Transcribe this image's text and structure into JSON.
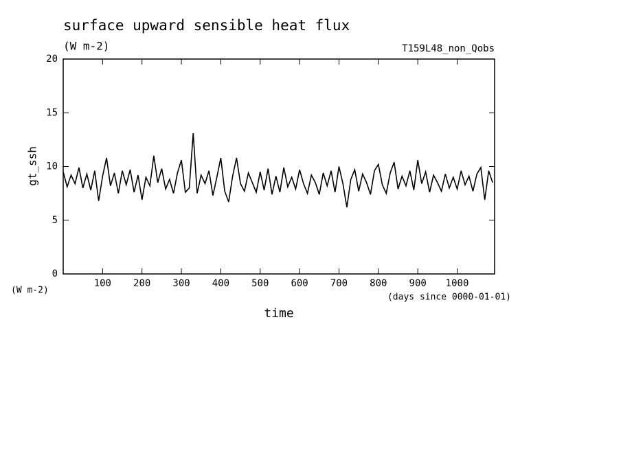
{
  "chart_data": {
    "type": "line",
    "title": "surface upward sensible heat flux",
    "subtitle": "(W m-2)",
    "run_label": "T159L48_non_Qobs",
    "y_label": "gt_ssh",
    "y_unit": "(W m-2)",
    "x_label": "time",
    "x_unit": "(days since 0000-01-01)",
    "xlim": [
      0,
      1095
    ],
    "xticks": [
      100,
      200,
      300,
      400,
      500,
      600,
      700,
      800,
      900,
      1000
    ],
    "ylim": [
      0,
      20
    ],
    "yticks": [
      0,
      5,
      10,
      15,
      20
    ],
    "color": "#000000",
    "x": [
      0,
      10,
      20,
      30,
      40,
      50,
      60,
      70,
      80,
      90,
      100,
      110,
      120,
      130,
      140,
      150,
      160,
      170,
      180,
      190,
      200,
      210,
      220,
      230,
      240,
      250,
      260,
      270,
      280,
      290,
      300,
      310,
      320,
      330,
      340,
      350,
      360,
      370,
      380,
      390,
      400,
      410,
      420,
      430,
      440,
      450,
      460,
      470,
      480,
      490,
      500,
      510,
      520,
      530,
      540,
      550,
      560,
      570,
      580,
      590,
      600,
      610,
      620,
      630,
      640,
      650,
      660,
      670,
      680,
      690,
      700,
      710,
      720,
      730,
      740,
      750,
      760,
      770,
      780,
      790,
      800,
      810,
      820,
      830,
      840,
      850,
      860,
      870,
      880,
      890,
      900,
      910,
      920,
      930,
      940,
      950,
      960,
      970,
      980,
      990,
      1000,
      1010,
      1020,
      1030,
      1040,
      1050,
      1060,
      1070,
      1080,
      1090
    ],
    "values": [
      9.5,
      8.1,
      9.2,
      8.4,
      9.9,
      8.0,
      9.3,
      7.8,
      9.6,
      6.8,
      9.1,
      10.8,
      8.2,
      9.4,
      7.5,
      9.6,
      8.3,
      9.7,
      7.6,
      9.2,
      6.9,
      9.0,
      8.2,
      11.0,
      8.5,
      9.8,
      7.9,
      8.8,
      7.5,
      9.4,
      10.6,
      7.6,
      8.0,
      13.1,
      7.5,
      9.2,
      8.4,
      9.6,
      7.3,
      9.0,
      10.8,
      7.7,
      6.7,
      9.1,
      10.8,
      8.4,
      7.7,
      9.4,
      8.5,
      7.6,
      9.5,
      7.8,
      9.8,
      7.4,
      9.1,
      7.6,
      9.9,
      8.1,
      9.0,
      7.9,
      9.7,
      8.4,
      7.5,
      9.2,
      8.5,
      7.4,
      9.4,
      8.2,
      9.6,
      7.6,
      10.0,
      8.4,
      6.2,
      8.8,
      9.7,
      7.7,
      9.3,
      8.5,
      7.4,
      9.6,
      10.2,
      8.3,
      7.5,
      9.4,
      10.4,
      7.9,
      9.1,
      8.2,
      9.6,
      7.8,
      10.6,
      8.4,
      9.5,
      7.6,
      9.2,
      8.5,
      7.7,
      9.3,
      8.0,
      9.0,
      7.9,
      9.6,
      8.3,
      9.1,
      7.7,
      9.3,
      9.9,
      6.9,
      9.6,
      8.5
    ]
  }
}
